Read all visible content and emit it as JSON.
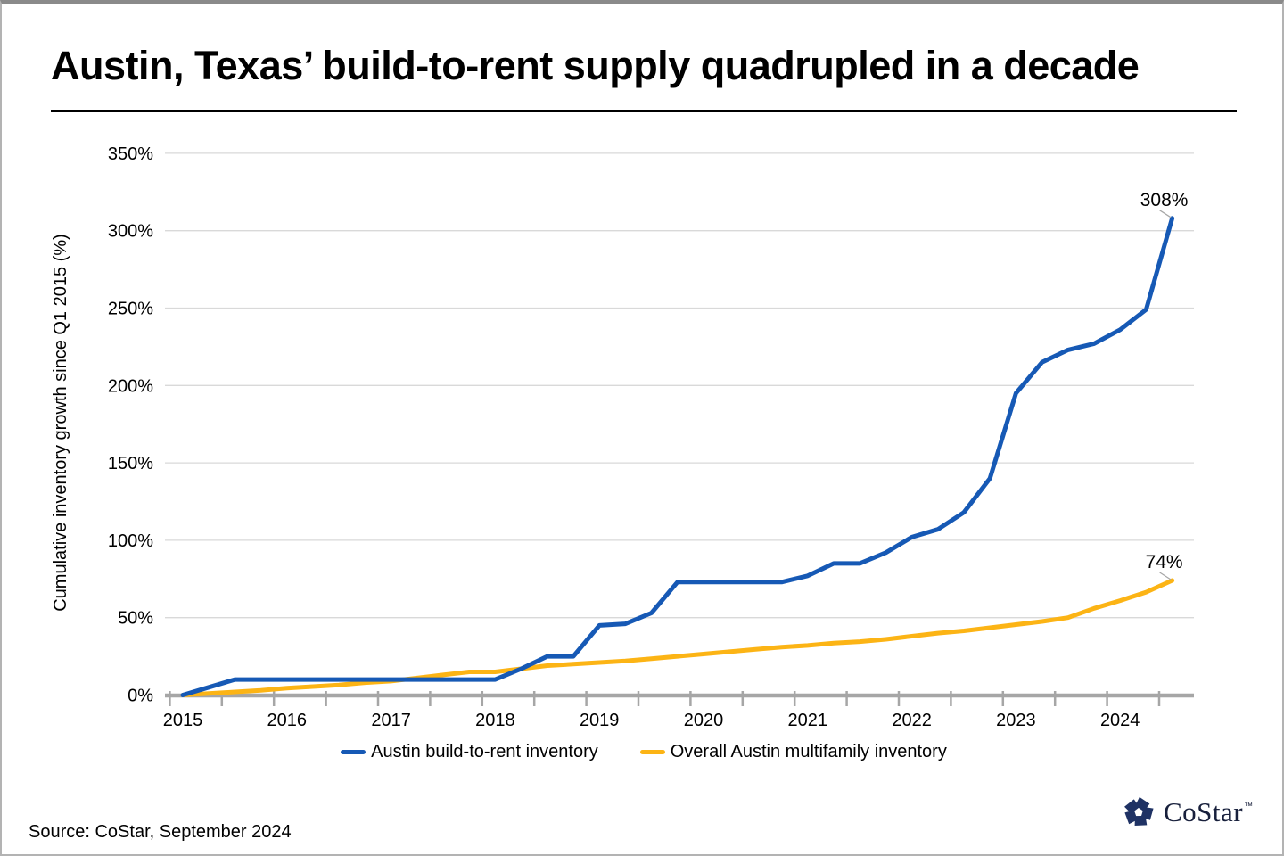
{
  "page": {
    "title": "Austin, Texas’ build-to-rent supply quadrupled in a decade",
    "source": "Source: CoStar, September 2024",
    "logo": {
      "text": "CoStar",
      "tm": "™"
    }
  },
  "colors": {
    "build_to_rent_line": "#1659B5",
    "multifamily_line": "#FCB415",
    "gridline": "#D9D9D9",
    "axis": "#A6A6A6",
    "text": "#000000",
    "leader_line": "#A6A6A6",
    "logo_navy": "#1F3264"
  },
  "chart_data": {
    "type": "line",
    "title": "Austin, Texas’ build-to-rent supply quadrupled in a decade",
    "xlabel": "",
    "ylabel": "Cumulative inventory growth since Q1 2015 (%)",
    "ylim": [
      0,
      350
    ],
    "y_tick_step": 50,
    "y_tick_labels": [
      "0%",
      "50%",
      "100%",
      "150%",
      "200%",
      "250%",
      "300%",
      "350%"
    ],
    "x_tick_labels": [
      "2015",
      "2016",
      "2017",
      "2018",
      "2019",
      "2020",
      "2021",
      "2022",
      "2023",
      "2024"
    ],
    "grid": "horizontal",
    "legend_position": "bottom",
    "x": [
      "2015 Q1",
      "2015 Q2",
      "2015 Q3",
      "2015 Q4",
      "2016 Q1",
      "2016 Q2",
      "2016 Q3",
      "2016 Q4",
      "2017 Q1",
      "2017 Q2",
      "2017 Q3",
      "2017 Q4",
      "2018 Q1",
      "2018 Q2",
      "2018 Q3",
      "2018 Q4",
      "2019 Q1",
      "2019 Q2",
      "2019 Q3",
      "2019 Q4",
      "2020 Q1",
      "2020 Q2",
      "2020 Q3",
      "2020 Q4",
      "2021 Q1",
      "2021 Q2",
      "2021 Q3",
      "2021 Q4",
      "2022 Q1",
      "2022 Q2",
      "2022 Q3",
      "2022 Q4",
      "2023 Q1",
      "2023 Q2",
      "2023 Q3",
      "2023 Q4",
      "2024 Q1",
      "2024 Q2",
      "2024 Q3"
    ],
    "series": [
      {
        "name": "Austin build-to-rent inventory",
        "color": "#1659B5",
        "values": [
          0,
          5,
          10,
          10,
          10,
          10,
          10,
          10,
          10,
          10,
          10,
          10,
          10,
          17,
          25,
          25,
          45,
          46,
          53,
          73,
          73,
          73,
          73,
          73,
          77,
          85,
          85,
          92,
          102,
          107,
          118,
          140,
          195,
          215,
          223,
          227,
          236,
          249,
          308
        ]
      },
      {
        "name": "Overall Austin multifamily inventory",
        "color": "#FCB415",
        "values": [
          0,
          1,
          2,
          3,
          4.5,
          5.5,
          6.5,
          8,
          9,
          11,
          13,
          15,
          15,
          17,
          19,
          20,
          21,
          22,
          23.5,
          25,
          26.5,
          28,
          29.5,
          31,
          32,
          33.5,
          34.5,
          36,
          38,
          40,
          41.5,
          43.5,
          45.5,
          47.5,
          50,
          56,
          61,
          66.5,
          74
        ]
      }
    ],
    "annotations": [
      {
        "text": "308%",
        "series": "Austin build-to-rent inventory",
        "x": "2024 Q3",
        "value": 308
      },
      {
        "text": "74%",
        "series": "Overall Austin multifamily inventory",
        "x": "2024 Q3",
        "value": 74
      }
    ]
  }
}
